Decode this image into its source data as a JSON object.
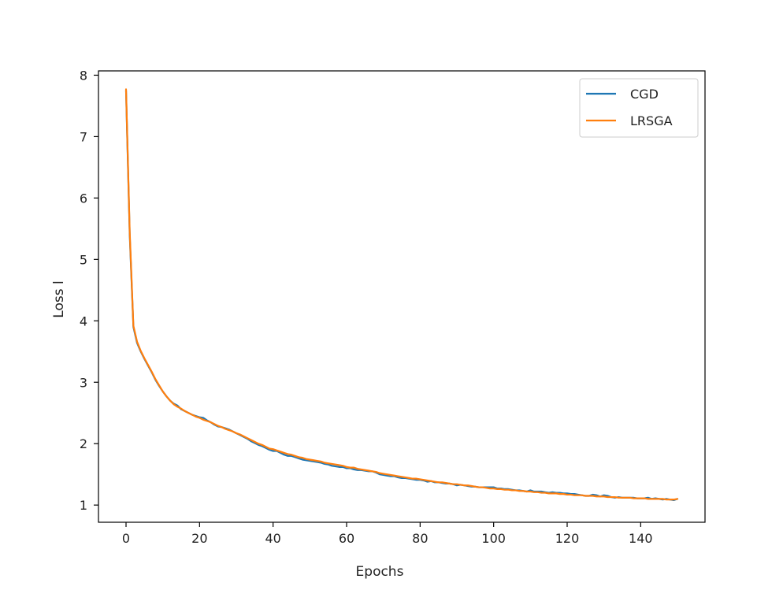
{
  "chart_data": {
    "type": "line",
    "title": "",
    "xlabel": "Epochs",
    "ylabel": "Loss l",
    "xlim": [
      -7.5,
      157.5
    ],
    "ylim": [
      0.72,
      8.07
    ],
    "xticks": [
      0,
      20,
      40,
      60,
      80,
      100,
      120,
      140
    ],
    "yticks": [
      1,
      2,
      3,
      4,
      5,
      6,
      7,
      8
    ],
    "grid": false,
    "legend_position": "top-right",
    "x": [
      0,
      1,
      2,
      3,
      4,
      5,
      6,
      7,
      8,
      9,
      10,
      11,
      12,
      13,
      14,
      15,
      16,
      17,
      18,
      19,
      20,
      21,
      22,
      23,
      24,
      25,
      26,
      27,
      28,
      29,
      30,
      31,
      32,
      33,
      34,
      35,
      36,
      37,
      38,
      39,
      40,
      41,
      42,
      43,
      44,
      45,
      46,
      47,
      48,
      49,
      50,
      51,
      52,
      53,
      54,
      55,
      56,
      57,
      58,
      59,
      60,
      61,
      62,
      63,
      64,
      65,
      66,
      67,
      68,
      69,
      70,
      71,
      72,
      73,
      74,
      75,
      76,
      77,
      78,
      79,
      80,
      81,
      82,
      83,
      84,
      85,
      86,
      87,
      88,
      89,
      90,
      91,
      92,
      93,
      94,
      95,
      96,
      97,
      98,
      99,
      100,
      101,
      102,
      103,
      104,
      105,
      106,
      107,
      108,
      109,
      110,
      111,
      112,
      113,
      114,
      115,
      116,
      117,
      118,
      119,
      120,
      121,
      122,
      123,
      124,
      125,
      126,
      127,
      128,
      129,
      130,
      131,
      132,
      133,
      134,
      135,
      136,
      137,
      138,
      139,
      140,
      141,
      142,
      143,
      144,
      145,
      146,
      147,
      148,
      149,
      150
    ],
    "series": [
      {
        "name": "CGD",
        "color": "#1f77b4",
        "values": [
          7.75,
          5.4,
          3.9,
          3.64,
          3.5,
          3.38,
          3.27,
          3.16,
          3.04,
          2.94,
          2.85,
          2.77,
          2.7,
          2.65,
          2.62,
          2.56,
          2.53,
          2.5,
          2.47,
          2.45,
          2.43,
          2.42,
          2.38,
          2.35,
          2.31,
          2.28,
          2.27,
          2.25,
          2.23,
          2.2,
          2.17,
          2.14,
          2.11,
          2.08,
          2.04,
          2.01,
          1.98,
          1.96,
          1.93,
          1.9,
          1.88,
          1.88,
          1.85,
          1.82,
          1.8,
          1.8,
          1.78,
          1.76,
          1.74,
          1.73,
          1.72,
          1.71,
          1.7,
          1.69,
          1.67,
          1.66,
          1.64,
          1.63,
          1.62,
          1.62,
          1.6,
          1.6,
          1.58,
          1.57,
          1.57,
          1.56,
          1.55,
          1.55,
          1.53,
          1.5,
          1.49,
          1.48,
          1.47,
          1.47,
          1.45,
          1.44,
          1.44,
          1.43,
          1.42,
          1.41,
          1.41,
          1.4,
          1.38,
          1.39,
          1.37,
          1.37,
          1.36,
          1.35,
          1.35,
          1.34,
          1.32,
          1.33,
          1.32,
          1.31,
          1.3,
          1.3,
          1.29,
          1.29,
          1.29,
          1.29,
          1.29,
          1.27,
          1.27,
          1.26,
          1.26,
          1.25,
          1.24,
          1.24,
          1.23,
          1.22,
          1.24,
          1.22,
          1.22,
          1.22,
          1.21,
          1.2,
          1.21,
          1.2,
          1.2,
          1.19,
          1.19,
          1.18,
          1.18,
          1.17,
          1.16,
          1.15,
          1.15,
          1.17,
          1.16,
          1.14,
          1.16,
          1.15,
          1.13,
          1.12,
          1.13,
          1.12,
          1.12,
          1.12,
          1.12,
          1.11,
          1.11,
          1.11,
          1.12,
          1.1,
          1.11,
          1.1,
          1.09,
          1.1,
          1.09,
          1.08,
          1.1
        ]
      },
      {
        "name": "LRSGA",
        "color": "#ff7f0e",
        "values": [
          7.77,
          5.45,
          3.92,
          3.66,
          3.51,
          3.39,
          3.28,
          3.17,
          3.05,
          2.95,
          2.85,
          2.77,
          2.7,
          2.64,
          2.6,
          2.57,
          2.53,
          2.5,
          2.47,
          2.44,
          2.42,
          2.39,
          2.37,
          2.35,
          2.32,
          2.29,
          2.27,
          2.24,
          2.22,
          2.2,
          2.17,
          2.15,
          2.12,
          2.09,
          2.06,
          2.03,
          2.0,
          1.98,
          1.95,
          1.92,
          1.91,
          1.89,
          1.87,
          1.85,
          1.83,
          1.82,
          1.8,
          1.78,
          1.77,
          1.75,
          1.74,
          1.73,
          1.72,
          1.71,
          1.69,
          1.68,
          1.67,
          1.66,
          1.65,
          1.64,
          1.62,
          1.61,
          1.61,
          1.59,
          1.58,
          1.57,
          1.56,
          1.55,
          1.54,
          1.52,
          1.51,
          1.5,
          1.49,
          1.48,
          1.47,
          1.46,
          1.45,
          1.44,
          1.43,
          1.43,
          1.42,
          1.41,
          1.4,
          1.39,
          1.38,
          1.37,
          1.37,
          1.36,
          1.35,
          1.34,
          1.34,
          1.33,
          1.32,
          1.32,
          1.31,
          1.3,
          1.29,
          1.29,
          1.28,
          1.27,
          1.27,
          1.26,
          1.26,
          1.25,
          1.25,
          1.24,
          1.24,
          1.23,
          1.23,
          1.22,
          1.22,
          1.21,
          1.21,
          1.2,
          1.2,
          1.19,
          1.19,
          1.19,
          1.18,
          1.18,
          1.17,
          1.17,
          1.16,
          1.16,
          1.16,
          1.15,
          1.15,
          1.15,
          1.14,
          1.14,
          1.14,
          1.13,
          1.13,
          1.13,
          1.12,
          1.12,
          1.12,
          1.12,
          1.11,
          1.11,
          1.11,
          1.11,
          1.1,
          1.1,
          1.1,
          1.1,
          1.1,
          1.09,
          1.09,
          1.09,
          1.1
        ]
      }
    ]
  }
}
